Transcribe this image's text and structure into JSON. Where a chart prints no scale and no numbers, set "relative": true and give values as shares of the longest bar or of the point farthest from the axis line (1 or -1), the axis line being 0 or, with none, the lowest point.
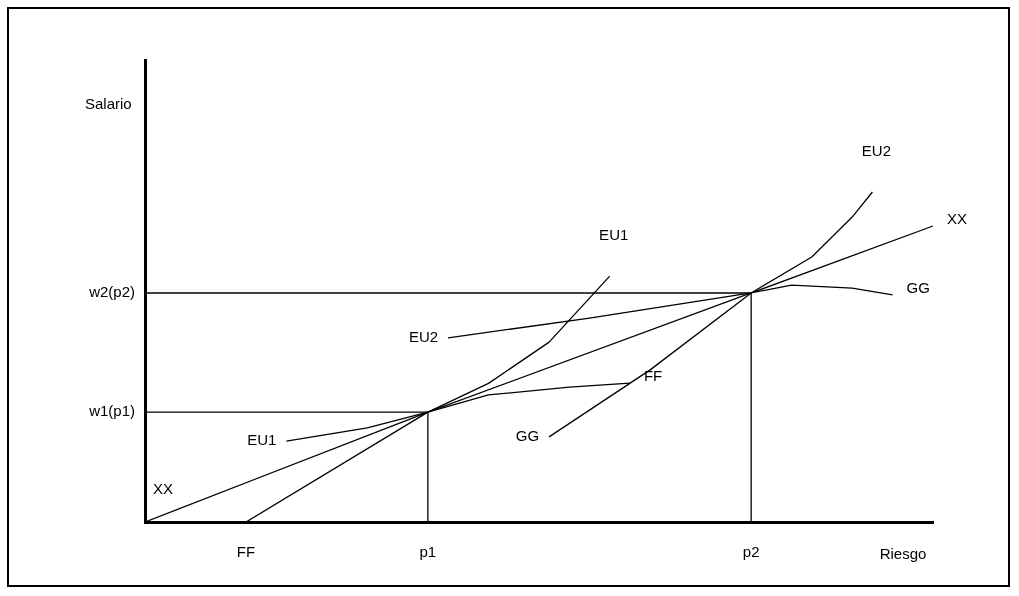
{
  "chart_data": {
    "type": "line",
    "xlabel": "Riesgo",
    "relative": true,
    "grid": false,
    "legend": false,
    "marker": "none",
    "line_style": "solid",
    "categories": [
      null,
      null,
      null,
      null,
      null,
      "FF",
      null,
      null,
      null,
      null,
      null,
      null,
      null,
      null,
      "p1",
      null,
      null,
      null,
      null,
      null,
      null,
      null,
      null,
      null,
      null,
      null,
      null,
      null,
      null,
      null,
      "p2",
      null,
      null,
      null,
      null,
      null,
      null,
      null,
      null,
      null
    ],
    "annotations": [
      "Salario",
      "w1(p1)",
      "w2(p2)"
    ],
    "series": [
      {
        "name": "XX",
        "color": "#000000",
        "values": [
          0,
          null,
          null,
          null,
          null,
          null,
          null,
          null,
          null,
          null,
          null,
          null,
          null,
          null,
          0.333,
          null,
          null,
          null,
          null,
          null,
          null,
          null,
          null,
          null,
          null,
          null,
          null,
          null,
          null,
          null,
          0.694,
          null,
          null,
          null,
          null,
          null,
          null,
          null,
          null,
          0.897
        ]
      },
      {
        "name": "FF",
        "color": "#000000",
        "values": [
          null,
          null,
          null,
          null,
          null,
          0,
          null,
          null,
          null,
          null,
          null,
          null,
          null,
          null,
          0.333,
          null,
          null,
          0.385,
          null,
          null,
          null,
          0.409,
          null,
          null,
          0.421,
          null,
          null,
          null,
          null,
          null,
          null,
          null,
          null,
          null,
          null,
          null,
          null,
          null,
          null,
          null
        ]
      },
      {
        "name": "GG",
        "color": "#000000",
        "values": [
          null,
          null,
          null,
          null,
          null,
          null,
          null,
          null,
          null,
          null,
          null,
          null,
          null,
          null,
          null,
          null,
          null,
          null,
          null,
          null,
          0.258,
          null,
          null,
          null,
          null,
          0.461,
          null,
          null,
          null,
          null,
          0.694,
          null,
          0.718,
          null,
          null,
          0.709,
          null,
          0.688,
          null,
          null
        ]
      },
      {
        "name": "EU1",
        "color": "#000000",
        "values": [
          null,
          null,
          null,
          null,
          null,
          null,
          null,
          0.245,
          null,
          null,
          null,
          0.285,
          null,
          null,
          0.333,
          null,
          null,
          0.42,
          null,
          null,
          0.545,
          null,
          null,
          0.745,
          null,
          null,
          null,
          null,
          null,
          null,
          null,
          null,
          null,
          null,
          null,
          null,
          null,
          null,
          null,
          null
        ]
      },
      {
        "name": "EU2",
        "color": "#000000",
        "values": [
          null,
          null,
          null,
          null,
          null,
          null,
          null,
          null,
          null,
          null,
          null,
          null,
          null,
          null,
          null,
          0.558,
          null,
          null,
          null,
          null,
          null,
          null,
          0.618,
          null,
          null,
          null,
          null,
          null,
          null,
          null,
          0.694,
          null,
          null,
          0.803,
          null,
          0.924,
          1.0,
          null,
          null,
          null
        ]
      },
      {
        "color": "#000000",
        "values": [
          0.333,
          null,
          null,
          null,
          null,
          null,
          null,
          null,
          null,
          null,
          null,
          null,
          null,
          null,
          0.333,
          null,
          null,
          null,
          null,
          null,
          null,
          null,
          null,
          null,
          null,
          null,
          null,
          null,
          null,
          null,
          null,
          null,
          null,
          null,
          null,
          null,
          null,
          null,
          null,
          null
        ]
      },
      {
        "color": "#000000",
        "values": [
          0.694,
          null,
          null,
          null,
          null,
          null,
          null,
          null,
          null,
          null,
          null,
          null,
          null,
          null,
          null,
          null,
          null,
          null,
          null,
          null,
          null,
          null,
          null,
          null,
          null,
          null,
          null,
          null,
          null,
          null,
          0.694,
          null,
          null,
          null,
          null,
          null,
          null,
          null,
          null,
          null
        ]
      },
      {
        "color": "#000000",
        "x": [
          "p1",
          "p1"
        ],
        "values": [
          0.333,
          0
        ]
      },
      {
        "color": "#000000",
        "x": [
          "p2",
          "p2"
        ],
        "values": [
          0.694,
          0
        ]
      }
    ]
  }
}
